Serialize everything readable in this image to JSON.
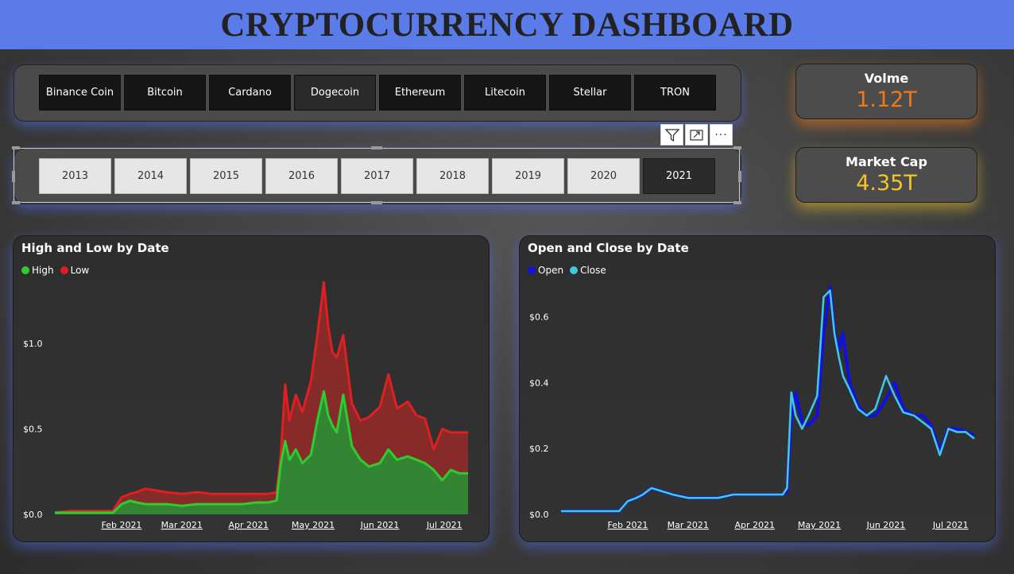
{
  "header": {
    "title": "CRYPTOCURRENCY DASHBOARD"
  },
  "coin_slicer": {
    "items": [
      "Binance Coin",
      "Bitcoin",
      "Cardano",
      "Dogecoin",
      "Ethereum",
      "Litecoin",
      "Stellar",
      "TRON"
    ],
    "selected": "Dogecoin"
  },
  "year_slicer": {
    "items": [
      "2013",
      "2014",
      "2015",
      "2016",
      "2017",
      "2018",
      "2019",
      "2020",
      "2021"
    ],
    "selected": "2021"
  },
  "toolbar": {
    "icons": [
      "filter-icon",
      "focus-mode-icon",
      "more-options-icon"
    ],
    "more_label": "···"
  },
  "cards": {
    "volume": {
      "title": "Volme",
      "value": "1.12T",
      "color": "#f07a1a"
    },
    "market_cap": {
      "title": "Market Cap",
      "value": "4.35T",
      "color": "#f3c626"
    }
  },
  "chart_data": [
    {
      "type": "area",
      "title": "High and Low by Date",
      "x_ticks": [
        "Feb 2021",
        "Mar 2021",
        "Apr 2021",
        "May 2021",
        "Jun 2021",
        "Jul 2021"
      ],
      "y_ticks": [
        "$0.0",
        "$0.5",
        "$1.0"
      ],
      "ylim": [
        0,
        1.35
      ],
      "xlabel": "",
      "ylabel": "",
      "legend_position": "top-left",
      "x": [
        "2021-01-01",
        "2021-01-08",
        "2021-01-15",
        "2021-01-22",
        "2021-01-28",
        "2021-02-01",
        "2021-02-05",
        "2021-02-08",
        "2021-02-12",
        "2021-02-17",
        "2021-02-22",
        "2021-03-01",
        "2021-03-08",
        "2021-03-15",
        "2021-03-22",
        "2021-03-29",
        "2021-04-05",
        "2021-04-10",
        "2021-04-14",
        "2021-04-16",
        "2021-04-18",
        "2021-04-20",
        "2021-04-23",
        "2021-04-26",
        "2021-04-30",
        "2021-05-03",
        "2021-05-06",
        "2021-05-08",
        "2021-05-10",
        "2021-05-12",
        "2021-05-15",
        "2021-05-19",
        "2021-05-23",
        "2021-05-27",
        "2021-06-01",
        "2021-06-05",
        "2021-06-09",
        "2021-06-14",
        "2021-06-18",
        "2021-06-22",
        "2021-06-26",
        "2021-06-30",
        "2021-07-04",
        "2021-07-08",
        "2021-07-12"
      ],
      "series": [
        {
          "name": "High",
          "color": "#2ecc2e",
          "fill": "#2e8a35",
          "values": [
            0.01,
            0.01,
            0.01,
            0.01,
            0.01,
            0.06,
            0.08,
            0.07,
            0.06,
            0.06,
            0.06,
            0.05,
            0.06,
            0.06,
            0.06,
            0.06,
            0.07,
            0.07,
            0.08,
            0.3,
            0.43,
            0.32,
            0.38,
            0.3,
            0.35,
            0.55,
            0.72,
            0.58,
            0.52,
            0.48,
            0.7,
            0.4,
            0.32,
            0.28,
            0.3,
            0.38,
            0.32,
            0.34,
            0.32,
            0.3,
            0.26,
            0.2,
            0.26,
            0.24,
            0.24
          ]
        },
        {
          "name": "Low",
          "color": "#e02020",
          "fill": "#8c2a2a",
          "values": [
            0.01,
            0.02,
            0.02,
            0.02,
            0.02,
            0.1,
            0.12,
            0.13,
            0.15,
            0.14,
            0.13,
            0.12,
            0.13,
            0.12,
            0.12,
            0.12,
            0.12,
            0.12,
            0.13,
            0.35,
            0.76,
            0.55,
            0.7,
            0.6,
            0.78,
            1.05,
            1.36,
            1.1,
            0.95,
            0.92,
            1.05,
            0.65,
            0.55,
            0.57,
            0.63,
            0.82,
            0.62,
            0.66,
            0.58,
            0.56,
            0.38,
            0.5,
            0.48,
            0.48,
            0.48
          ]
        }
      ]
    },
    {
      "type": "line",
      "title": "Open and Close by Date",
      "x_ticks": [
        "Feb 2021",
        "Mar 2021",
        "Apr 2021",
        "May 2021",
        "Jun 2021",
        "Jul 2021"
      ],
      "y_ticks": [
        "$0.0",
        "$0.2",
        "$0.4",
        "$0.6"
      ],
      "ylim": [
        0,
        0.7
      ],
      "xlabel": "",
      "ylabel": "",
      "legend_position": "top-left",
      "x": [
        "2021-01-01",
        "2021-01-08",
        "2021-01-15",
        "2021-01-22",
        "2021-01-28",
        "2021-02-01",
        "2021-02-05",
        "2021-02-08",
        "2021-02-12",
        "2021-02-17",
        "2021-02-22",
        "2021-03-01",
        "2021-03-08",
        "2021-03-15",
        "2021-03-22",
        "2021-03-29",
        "2021-04-05",
        "2021-04-10",
        "2021-04-14",
        "2021-04-16",
        "2021-04-18",
        "2021-04-20",
        "2021-04-23",
        "2021-04-26",
        "2021-04-30",
        "2021-05-03",
        "2021-05-06",
        "2021-05-08",
        "2021-05-10",
        "2021-05-12",
        "2021-05-15",
        "2021-05-19",
        "2021-05-23",
        "2021-05-27",
        "2021-06-01",
        "2021-06-05",
        "2021-06-09",
        "2021-06-14",
        "2021-06-18",
        "2021-06-22",
        "2021-06-26",
        "2021-06-30",
        "2021-07-04",
        "2021-07-08",
        "2021-07-12"
      ],
      "series": [
        {
          "name": "Open",
          "color": "#1010e0",
          "values": [
            0.01,
            0.01,
            0.01,
            0.01,
            0.01,
            0.04,
            0.05,
            0.06,
            0.08,
            0.07,
            0.06,
            0.05,
            0.05,
            0.05,
            0.06,
            0.06,
            0.06,
            0.06,
            0.06,
            0.07,
            0.3,
            0.37,
            0.28,
            0.27,
            0.3,
            0.55,
            0.69,
            0.56,
            0.5,
            0.55,
            0.4,
            0.33,
            0.3,
            0.3,
            0.35,
            0.4,
            0.32,
            0.3,
            0.3,
            0.27,
            0.19,
            0.26,
            0.26,
            0.25,
            0.24
          ]
        },
        {
          "name": "Close",
          "color": "#3dc8e8",
          "values": [
            0.01,
            0.01,
            0.01,
            0.01,
            0.01,
            0.04,
            0.05,
            0.06,
            0.08,
            0.07,
            0.06,
            0.05,
            0.05,
            0.05,
            0.06,
            0.06,
            0.06,
            0.06,
            0.06,
            0.08,
            0.37,
            0.3,
            0.26,
            0.3,
            0.36,
            0.66,
            0.68,
            0.55,
            0.48,
            0.42,
            0.38,
            0.32,
            0.3,
            0.32,
            0.42,
            0.36,
            0.31,
            0.3,
            0.28,
            0.26,
            0.18,
            0.26,
            0.25,
            0.25,
            0.23
          ]
        }
      ]
    }
  ]
}
